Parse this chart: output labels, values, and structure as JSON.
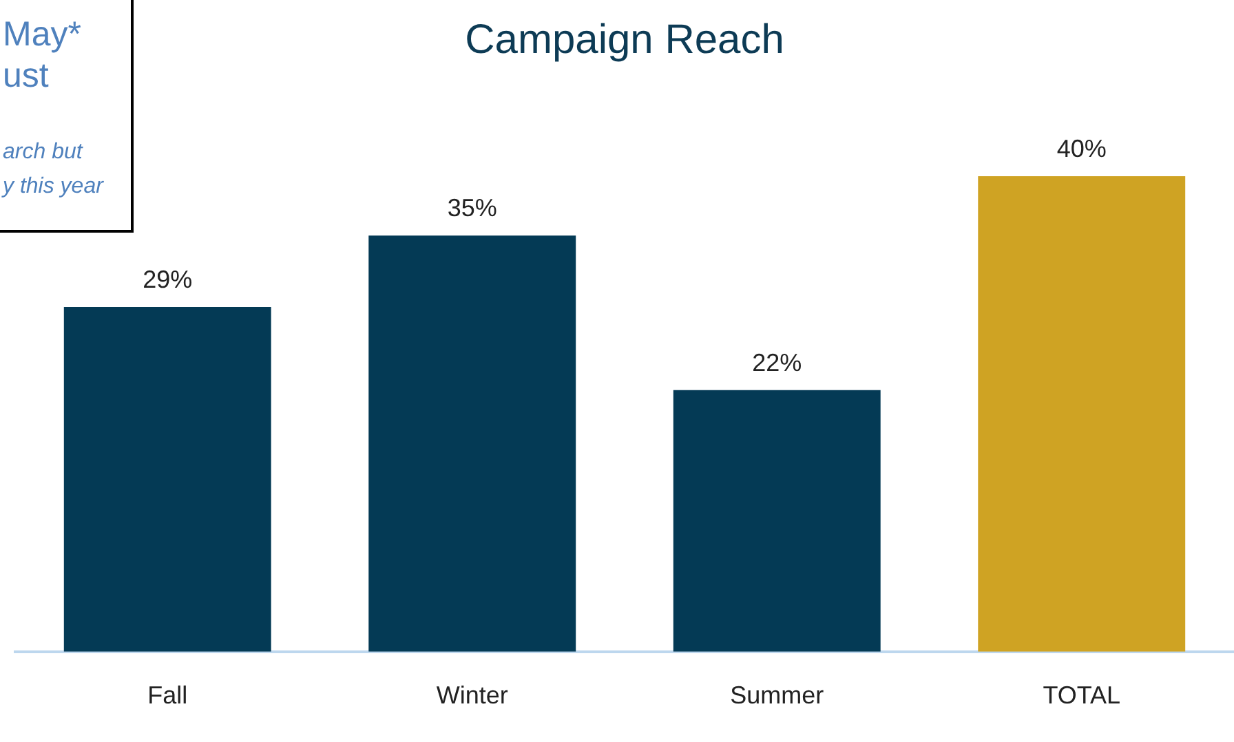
{
  "chart_data": {
    "type": "bar",
    "title": "Campaign Reach",
    "categories": [
      "Fall",
      "Winter",
      "Summer",
      "TOTAL"
    ],
    "values": [
      29,
      35,
      22,
      40
    ],
    "colors": [
      "#043a55",
      "#043a55",
      "#043a55",
      "#cfa323"
    ],
    "value_labels": [
      "29%",
      "35%",
      "22%",
      "40%"
    ],
    "tick_labels": "x",
    "grid": false,
    "legend": false,
    "annotations": [
      "May*",
      "ust",
      "arch but",
      "y this year"
    ]
  }
}
